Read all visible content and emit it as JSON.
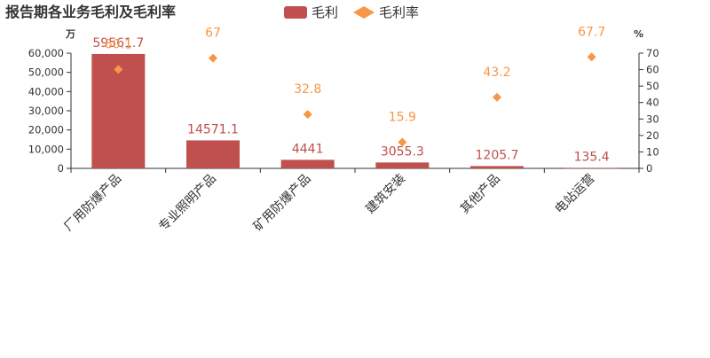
{
  "chart_data": {
    "type": "bar",
    "title": "报告期各业务毛利及毛利率",
    "left_unit": "万",
    "right_unit": "%",
    "categories": [
      "厂用防爆产品",
      "专业照明产品",
      "矿用防爆产品",
      "建筑安装",
      "其他产品",
      "电站运营"
    ],
    "series": [
      {
        "name": "毛利",
        "type": "bar",
        "axis": "left",
        "color": "#c0504d",
        "values": [
          59561.7,
          14571.1,
          4441,
          3055.3,
          1205.7,
          135.4
        ],
        "labels": [
          "59561.7",
          "14571.1",
          "4441",
          "3055.3",
          "1205.7",
          "135.4"
        ]
      },
      {
        "name": "毛利率",
        "type": "scatter",
        "marker": "diamond",
        "axis": "right",
        "color": "#f79646",
        "values": [
          60.1,
          67,
          32.8,
          15.9,
          43.2,
          67.7
        ],
        "labels": [
          "60.1",
          "67",
          "32.8",
          "15.9",
          "43.2",
          "67.7"
        ]
      }
    ],
    "y_left": {
      "min": 0,
      "max": 60000,
      "ticks": [
        0,
        10000,
        20000,
        30000,
        40000,
        50000,
        60000
      ],
      "tick_labels": [
        "0",
        "10,000",
        "20,000",
        "30,000",
        "40,000",
        "50,000",
        "60,000"
      ]
    },
    "y_right": {
      "min": 0,
      "max": 70,
      "ticks": [
        0,
        10,
        20,
        30,
        40,
        50,
        60,
        70
      ],
      "tick_labels": [
        "0",
        "10",
        "20",
        "30",
        "40",
        "50",
        "60",
        "70"
      ]
    },
    "legend": "top-center",
    "grid": false
  }
}
